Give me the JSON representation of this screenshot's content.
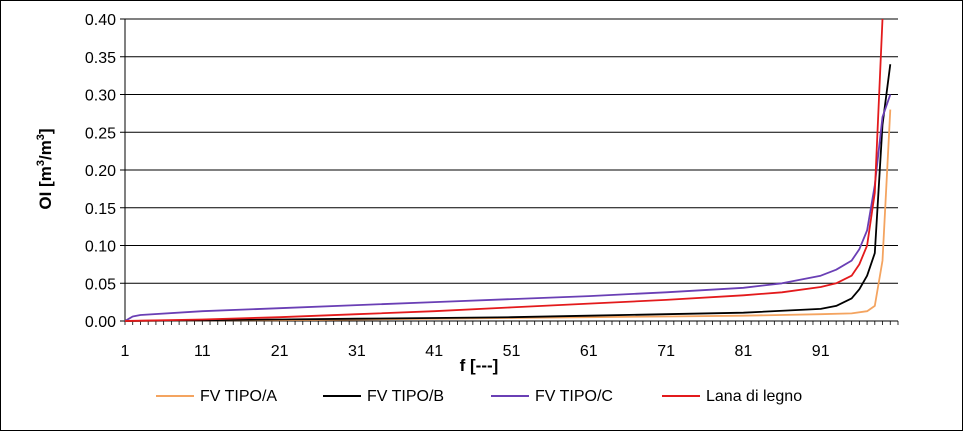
{
  "chart_data": {
    "type": "line",
    "title": "",
    "xlabel": "f [---]",
    "ylabel": "OI [m³/m³]",
    "xlim": [
      1,
      101
    ],
    "ylim": [
      0,
      0.4
    ],
    "x_ticks": [
      "1",
      "11",
      "21",
      "31",
      "41",
      "51",
      "61",
      "71",
      "81",
      "91"
    ],
    "y_ticks": [
      "0.00",
      "0.05",
      "0.10",
      "0.15",
      "0.20",
      "0.25",
      "0.30",
      "0.35",
      "0.40"
    ],
    "grid": "horizontal",
    "legend_position": "bottom",
    "series": [
      {
        "name": "FV TIPO/A",
        "color": "#f4a460",
        "x": [
          1,
          11,
          21,
          31,
          41,
          51,
          61,
          71,
          81,
          91,
          95,
          97,
          98,
          99,
          100
        ],
        "y": [
          0.0,
          0.001,
          0.001,
          0.002,
          0.003,
          0.004,
          0.005,
          0.006,
          0.007,
          0.009,
          0.01,
          0.013,
          0.02,
          0.08,
          0.28
        ]
      },
      {
        "name": "FV TIPO/B",
        "color": "#000000",
        "x": [
          1,
          11,
          21,
          31,
          41,
          51,
          61,
          71,
          81,
          91,
          93,
          95,
          96,
          97,
          98,
          99,
          100
        ],
        "y": [
          0.0,
          0.001,
          0.002,
          0.003,
          0.004,
          0.005,
          0.007,
          0.009,
          0.011,
          0.016,
          0.02,
          0.03,
          0.042,
          0.06,
          0.09,
          0.26,
          0.34
        ]
      },
      {
        "name": "FV TIPO/C",
        "color": "#6a3fb5",
        "x": [
          1,
          2,
          3,
          11,
          21,
          31,
          41,
          51,
          61,
          71,
          81,
          86,
          91,
          93,
          95,
          96,
          97,
          98,
          99,
          100
        ],
        "y": [
          0.0,
          0.006,
          0.008,
          0.013,
          0.017,
          0.021,
          0.025,
          0.029,
          0.033,
          0.038,
          0.044,
          0.05,
          0.06,
          0.068,
          0.08,
          0.095,
          0.12,
          0.18,
          0.27,
          0.3
        ]
      },
      {
        "name": "Lana di legno",
        "color": "#e31a1c",
        "x": [
          1,
          11,
          21,
          31,
          41,
          51,
          61,
          71,
          81,
          86,
          91,
          93,
          95,
          96,
          97,
          98,
          99
        ],
        "y": [
          0.0,
          0.002,
          0.005,
          0.009,
          0.013,
          0.018,
          0.023,
          0.028,
          0.034,
          0.038,
          0.045,
          0.05,
          0.06,
          0.075,
          0.1,
          0.17,
          0.4
        ]
      }
    ]
  }
}
